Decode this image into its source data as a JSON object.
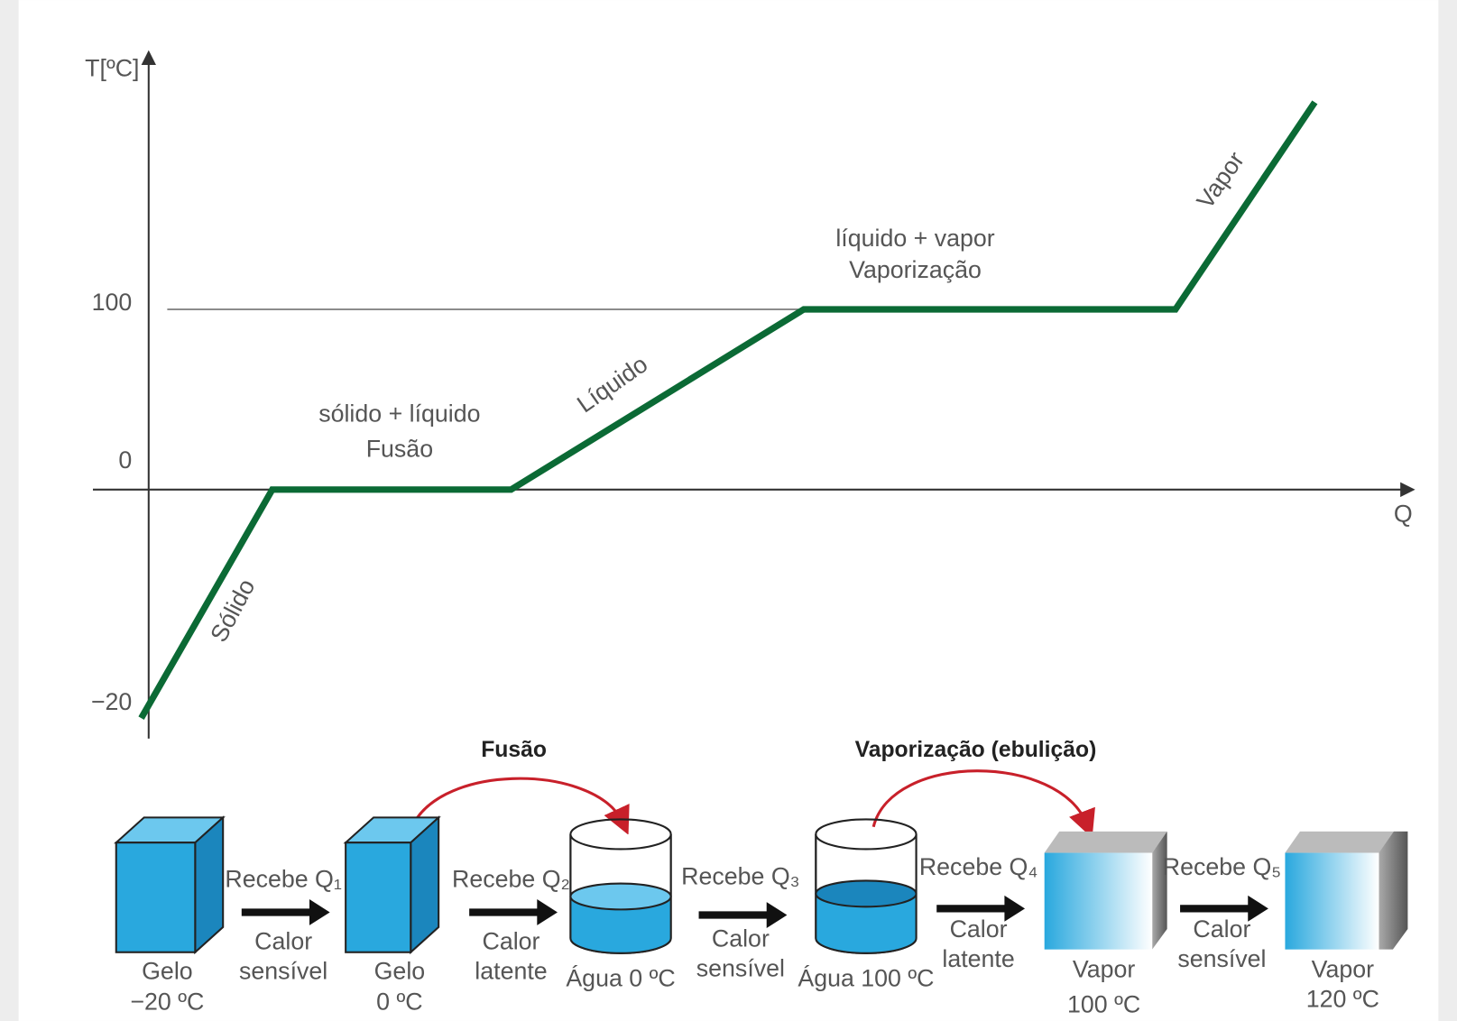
{
  "graph": {
    "y_axis_label": "T[ºC]",
    "x_axis_label": "Q",
    "y_ticks": [
      "100",
      "0",
      "−20"
    ],
    "segment_labels": {
      "solid": "Sólido",
      "melting": [
        "sólido + líquido",
        "Fusão"
      ],
      "liquid": "Líquido",
      "boiling": [
        "líquido + vapor",
        "Vaporização"
      ],
      "vapor": "Vapor"
    }
  },
  "flow": {
    "transitions": [
      "Fusão",
      "Vaporização (ebulição)"
    ],
    "states": [
      [
        "Gelo",
        "−20 ºC"
      ],
      [
        "Gelo",
        "0 ºC"
      ],
      [
        "Água 0 ºC"
      ],
      [
        "Água 100 ºC"
      ],
      [
        "Vapor",
        "100 ºC"
      ],
      [
        "Vapor",
        "120 ºC"
      ]
    ],
    "steps": [
      {
        "receives": "Recebe Q₁",
        "kind": [
          "Calor",
          "sensível"
        ]
      },
      {
        "receives": "Recebe Q₂",
        "kind": [
          "Calor",
          "latente"
        ]
      },
      {
        "receives": "Recebe Q₃",
        "kind": [
          "Calor",
          "sensível"
        ]
      },
      {
        "receives": "Recebe Q₄",
        "kind": [
          "Calor",
          "latente"
        ]
      },
      {
        "receives": "Recebe Q₅",
        "kind": [
          "Calor",
          "sensível"
        ]
      }
    ]
  }
}
